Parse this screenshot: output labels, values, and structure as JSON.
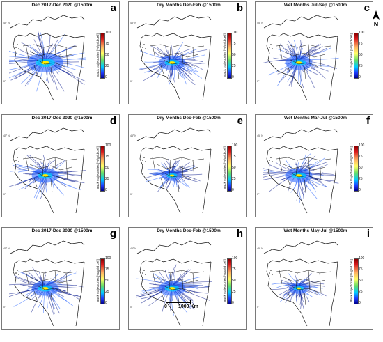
{
  "panels": [
    {
      "id": "a",
      "title": "Dec 2017-Dec 2020 @1500m",
      "letter": "a",
      "row": 0,
      "col": 0,
      "spread": "wide"
    },
    {
      "id": "b",
      "title": "Dry Months Dec-Feb @1500m",
      "letter": "b",
      "row": 0,
      "col": 1,
      "spread": "medium"
    },
    {
      "id": "c",
      "title": "Wet Months Jul-Sep @1500m",
      "letter": "c",
      "row": 0,
      "col": 2,
      "spread": "medium"
    },
    {
      "id": "d",
      "title": "Dec 2017-Dec 2020 @1500m",
      "letter": "d",
      "row": 1,
      "col": 0,
      "spread": "medium"
    },
    {
      "id": "e",
      "title": "Dry Months Dec-Feb @1500m",
      "letter": "e",
      "row": 1,
      "col": 1,
      "spread": "narrow"
    },
    {
      "id": "f",
      "title": "Wet Months Mar-Jul @1500m",
      "letter": "f",
      "row": 1,
      "col": 2,
      "spread": "medium"
    },
    {
      "id": "g",
      "title": "Dec 2017-Dec 2020 @1500m",
      "letter": "g",
      "row": 2,
      "col": 0,
      "spread": "medium"
    },
    {
      "id": "h",
      "title": "Dry Months Dec-Feb @1500m",
      "letter": "h",
      "row": 2,
      "col": 1,
      "spread": "medium"
    },
    {
      "id": "i",
      "title": "Wet Months May-Jul @1500m",
      "letter": "i",
      "row": 2,
      "col": 2,
      "spread": "narrow"
    }
  ],
  "colorbar": {
    "label": "Back trajectories [%/grid cell]",
    "ticks": [
      "100",
      "75",
      "50",
      "25",
      "0"
    ]
  },
  "lat_labels": {
    "top": "45° N",
    "bottom": "0°"
  },
  "north_arrow": {
    "label": "N"
  },
  "scale_bar": {
    "zero_label": "0",
    "distance_label": "1000 Km"
  },
  "colors": {
    "land_border": "#111111",
    "sea": "#ffffff",
    "trajectory_dark": "#0a1a8c",
    "trajectory_mid": "#1f5cff",
    "hotspot": "#ffee00"
  }
}
